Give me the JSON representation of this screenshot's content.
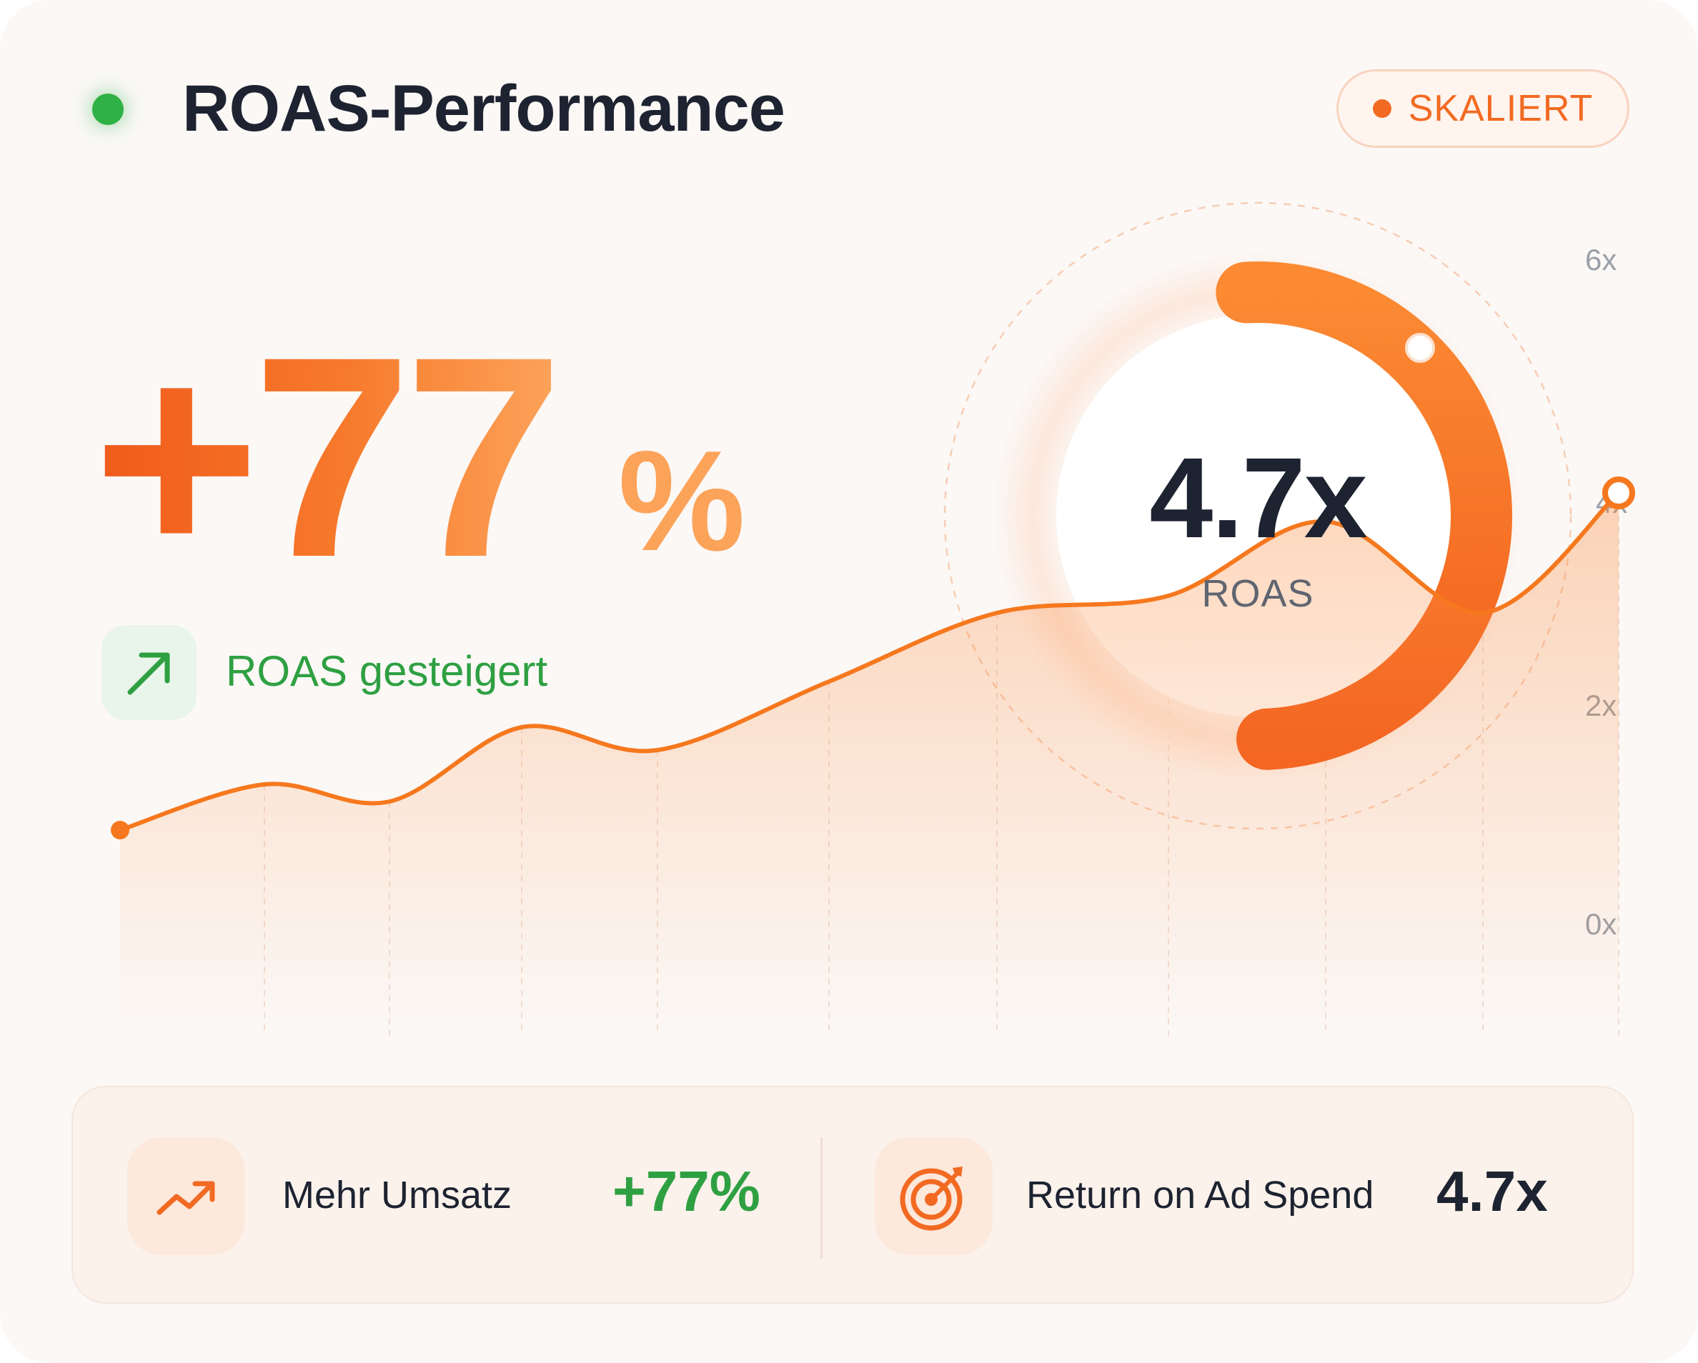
{
  "header": {
    "title": "ROAS-Performance",
    "badge_label": "SKALIERT"
  },
  "headline": {
    "value": "+77",
    "unit": "%",
    "trend_label": "ROAS gesteigert",
    "trend_icon": "arrow-up-right-icon"
  },
  "gauge": {
    "value_text": "4.7x",
    "label": "ROAS"
  },
  "chart_data": {
    "type": "line",
    "x": [
      0,
      1,
      2,
      3,
      4,
      5,
      6,
      7,
      8,
      9,
      10
    ],
    "values": [
      0.8,
      1.2,
      1.05,
      1.7,
      1.5,
      2.1,
      2.7,
      2.85,
      3.5,
      2.7,
      3.75
    ],
    "y_ticks": [
      "6x",
      "4x",
      "2x",
      "0x"
    ],
    "ylim": [
      0,
      6
    ],
    "grid": "vertical dashed",
    "fill": "gradient area"
  },
  "stats": [
    {
      "label": "Mehr Umsatz",
      "value": "+77%",
      "icon": "trending-up-icon",
      "color": "#2fa042"
    },
    {
      "label": "Return on Ad Spend",
      "value": "4.7x",
      "icon": "target-icon",
      "color": "#1d2330"
    }
  ],
  "colors": {
    "accent": "#f26a22",
    "accent_light": "#fb9a4c",
    "success": "#2fa042",
    "text": "#1d2330",
    "muted": "#9aa0a8"
  }
}
